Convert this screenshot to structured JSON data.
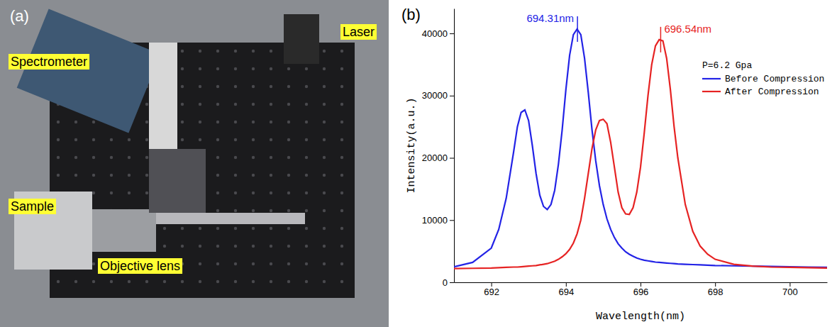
{
  "photo": {
    "letter": "(a)",
    "labels": [
      "Spectrometer",
      "Laser",
      "Sample",
      "Objective lens"
    ]
  },
  "chart_data": {
    "type": "line",
    "letter": "(b)",
    "x_label": "Wavelength(nm)",
    "y_label": "Intensity(a.u.)",
    "xlim": [
      691,
      701
    ],
    "xticks": [
      692,
      694,
      696,
      698,
      700
    ],
    "ylim": [
      0,
      44000
    ],
    "yticks": [
      0,
      10000,
      20000,
      30000,
      40000
    ],
    "grid": false,
    "legend": "upper right",
    "legend_title": "P=6.2 Gpa",
    "x": [
      691,
      691.5,
      692,
      692.2,
      692.4,
      692.6,
      692.7,
      692.8,
      692.9,
      693.0,
      693.1,
      693.2,
      693.3,
      693.4,
      693.5,
      693.6,
      693.7,
      693.8,
      693.9,
      694.0,
      694.1,
      694.2,
      694.3,
      694.4,
      694.5,
      694.6,
      694.7,
      694.8,
      694.9,
      695.0,
      695.1,
      695.2,
      695.3,
      695.4,
      695.5,
      695.6,
      695.7,
      695.8,
      695.9,
      696.0,
      696.1,
      696.2,
      696.3,
      696.4,
      696.5,
      696.6,
      696.7,
      696.8,
      696.9,
      697.0,
      697.2,
      697.4,
      697.6,
      697.8,
      698,
      698.5,
      699,
      699.5,
      700,
      700.5,
      701
    ],
    "series": [
      {
        "name": "Before Compression",
        "color": "#2323e6",
        "values": [
          2500,
          3200,
          5500,
          8500,
          13500,
          21000,
          25000,
          27300,
          27700,
          26000,
          22000,
          17500,
          14000,
          12200,
          11700,
          12500,
          14800,
          19000,
          24500,
          31000,
          36500,
          39800,
          40700,
          39800,
          36000,
          30500,
          24500,
          19500,
          15500,
          12500,
          10200,
          8500,
          7200,
          6200,
          5500,
          4900,
          4500,
          4200,
          3900,
          3700,
          3550,
          3450,
          3350,
          3250,
          3200,
          3150,
          3100,
          3050,
          3000,
          2950,
          2900,
          2850,
          2800,
          2750,
          2700,
          2650,
          2600,
          2550,
          2500,
          2450,
          2400
        ]
      },
      {
        "name": "After Compression",
        "color": "#e62323",
        "values": [
          2200,
          2250,
          2300,
          2350,
          2400,
          2450,
          2450,
          2500,
          2550,
          2600,
          2650,
          2700,
          2800,
          2900,
          3000,
          3200,
          3400,
          3700,
          4100,
          4600,
          5300,
          6300,
          7800,
          10000,
          13500,
          17500,
          21500,
          24500,
          26000,
          26200,
          25500,
          22500,
          18500,
          14500,
          12000,
          11000,
          10900,
          12000,
          14500,
          18500,
          24000,
          30000,
          35000,
          38000,
          39000,
          38800,
          36000,
          31000,
          25000,
          20000,
          12500,
          8200,
          5800,
          4500,
          3700,
          2900,
          2600,
          2450,
          2400,
          2350,
          2300
        ]
      }
    ],
    "annotations": [
      {
        "text": "694.31nm",
        "x": 694.31,
        "y": 40700,
        "series": 0
      },
      {
        "text": "696.54nm",
        "x": 696.54,
        "y": 39000,
        "series": 1
      }
    ]
  }
}
